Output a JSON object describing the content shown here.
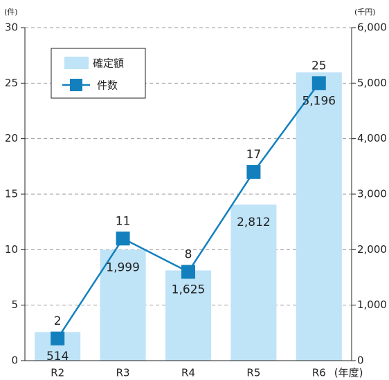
{
  "chart_data": {
    "type": "bar",
    "y_unit": "(件)",
    "y2_unit": "(千円)",
    "x_unit": "(年度)",
    "categories": [
      "R2",
      "R3",
      "R4",
      "R5",
      "R6"
    ],
    "series": [
      {
        "name": "確定額",
        "type": "bar",
        "axis": "y2",
        "color": "#bfe3f7",
        "values": [
          514,
          1999,
          1625,
          2812,
          5196
        ],
        "value_labels": [
          "514",
          "1,999",
          "1,625",
          "2,812",
          "5,196"
        ]
      },
      {
        "name": "件数",
        "type": "line",
        "axis": "y",
        "color": "#1380bd",
        "values": [
          2,
          11,
          8,
          17,
          25
        ]
      }
    ],
    "ylim": [
      0,
      30
    ],
    "yticks": [
      0,
      5,
      10,
      15,
      20,
      25,
      30
    ],
    "y2lim": [
      0,
      6000
    ],
    "y2ticks": [
      0,
      {
        "value": 1000,
        "label": "1,000"
      },
      {
        "value": 2000,
        "label": "2,000"
      },
      {
        "value": 3000,
        "label": "3,000"
      },
      {
        "value": 4000,
        "label": "4,000"
      },
      {
        "value": 5000,
        "label": "5,000"
      },
      {
        "value": 6000,
        "label": "6,000"
      }
    ],
    "grid": true,
    "legend": "upper left"
  }
}
